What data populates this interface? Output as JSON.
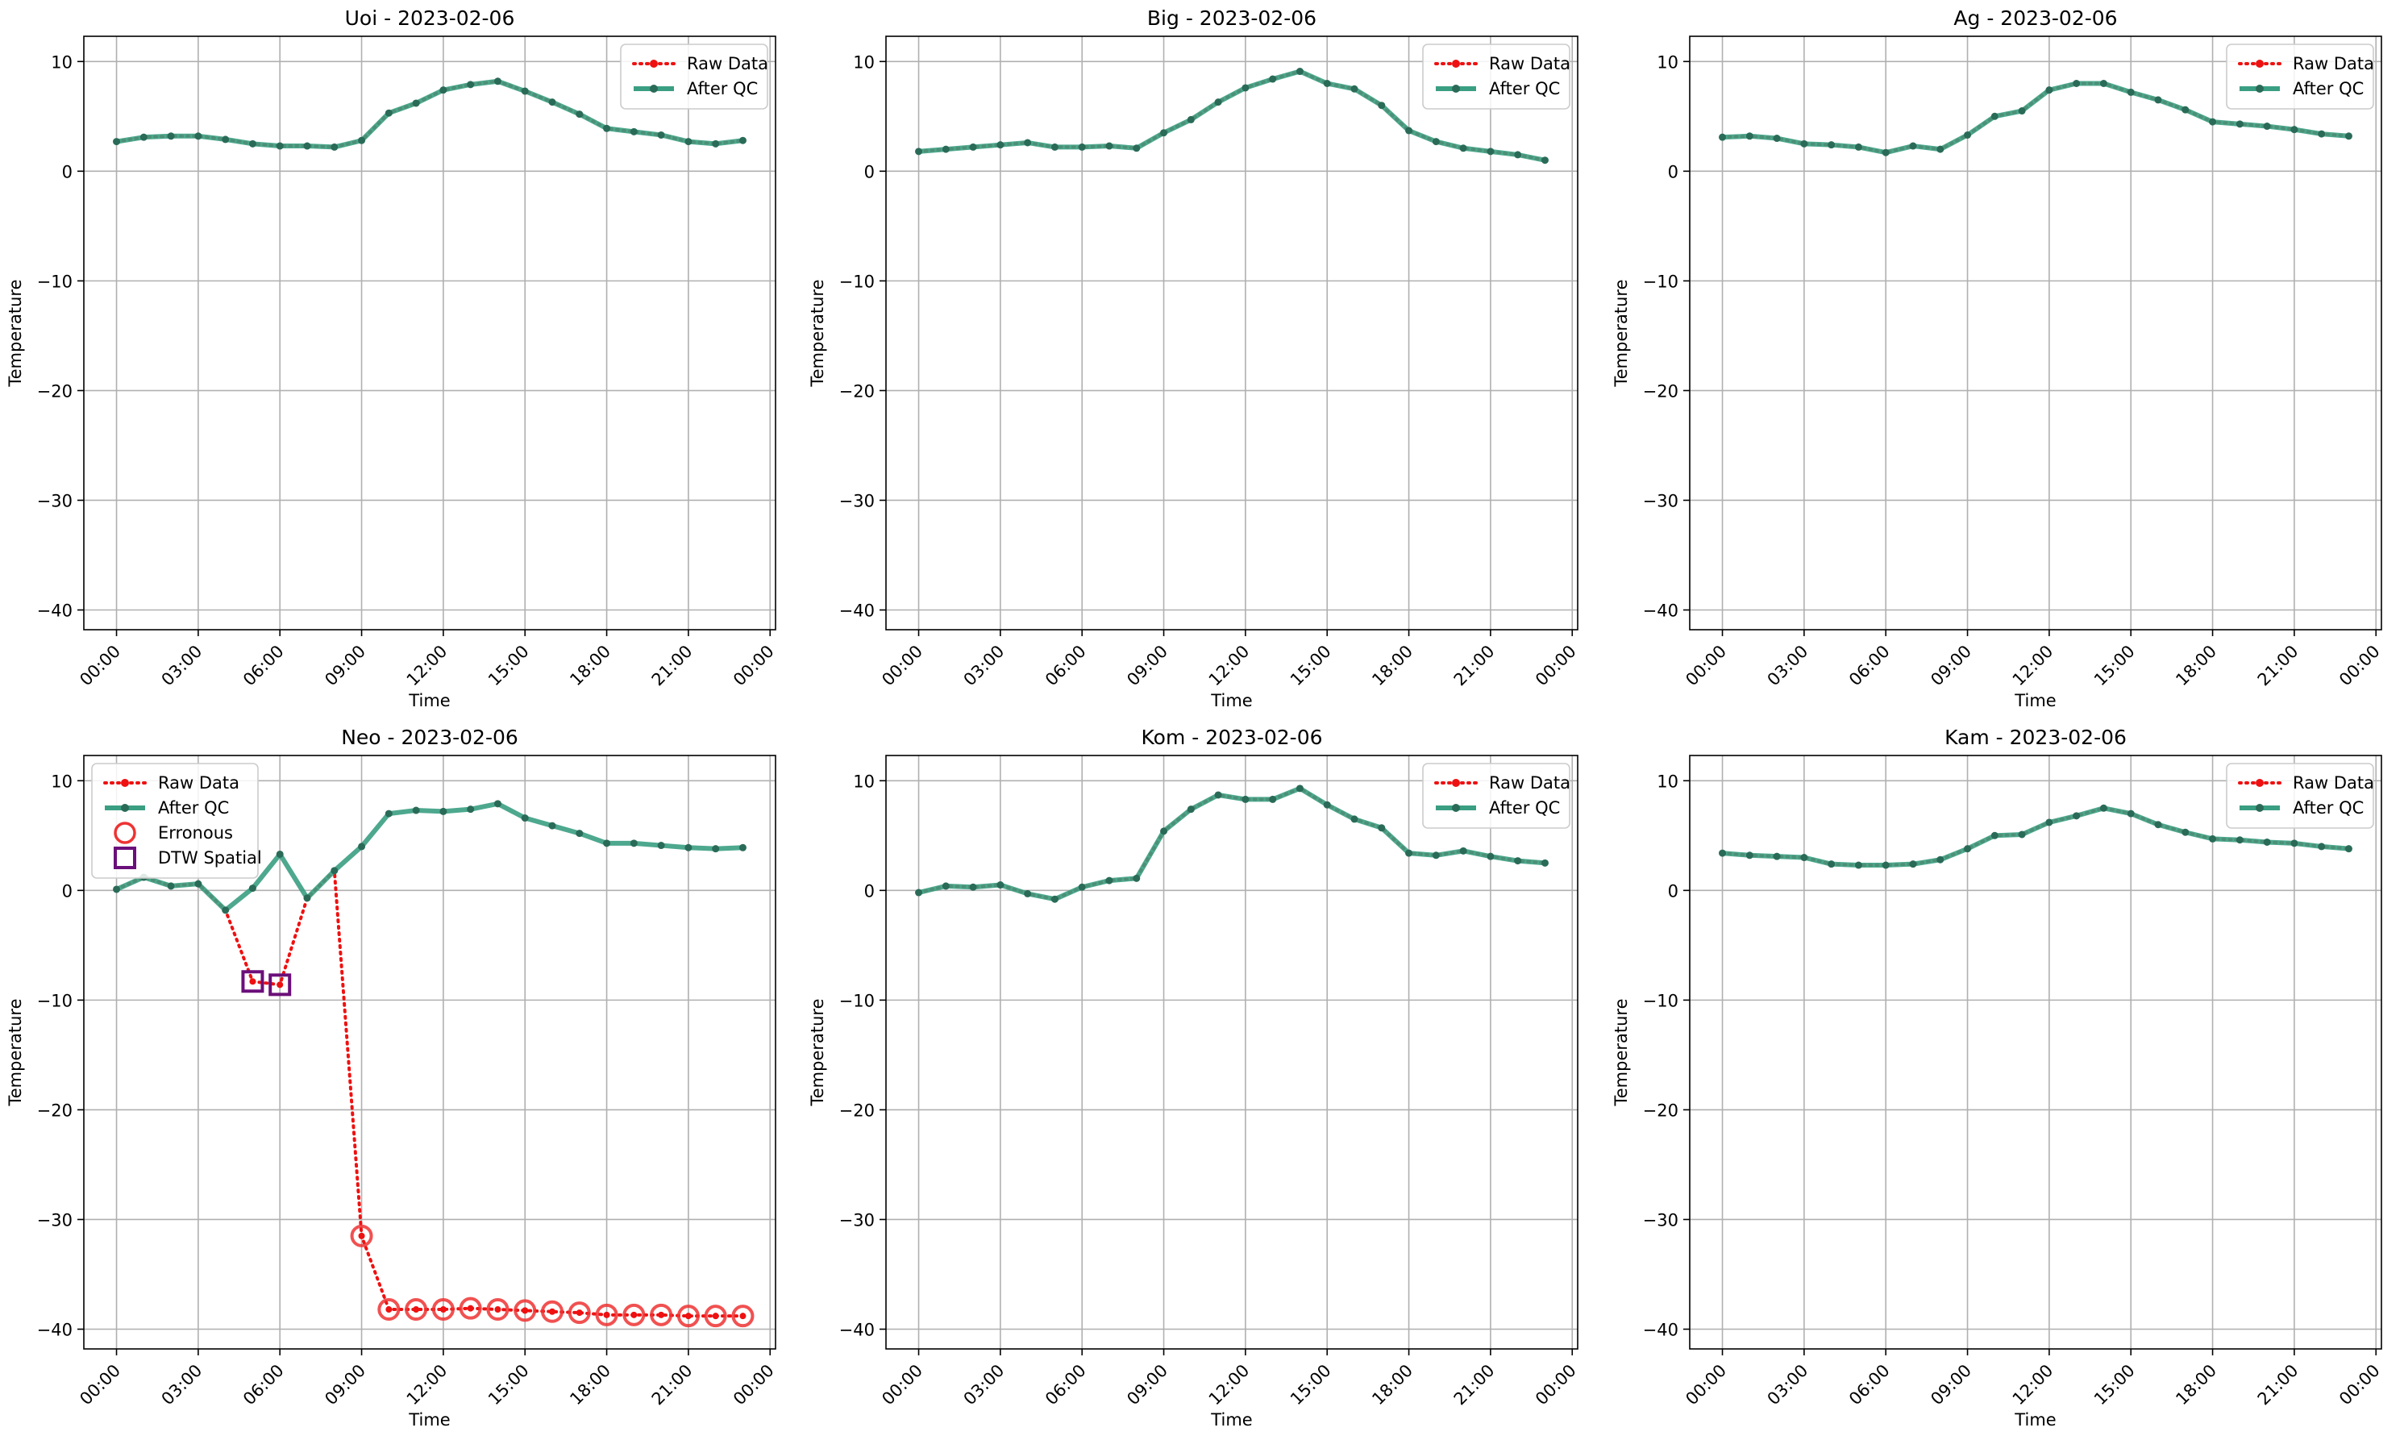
{
  "colors": {
    "raw": "#ee1111",
    "qc": "#3a9e82",
    "qc_marker": "#2a6b58",
    "erroneous": "#ee3333",
    "dtw": "#6b0f7a",
    "grid": "#b0b0b0"
  },
  "legend_labels": {
    "raw": "Raw Data",
    "qc": "After QC",
    "erroneous": "Erronous",
    "dtw": "DTW Spatial"
  },
  "chart_data": [
    {
      "type": "line",
      "title": "Uoi - 2023-02-06",
      "xlabel": "Time",
      "ylabel": "Temperature",
      "x_ticks": [
        "00:00",
        "03:00",
        "06:00",
        "09:00",
        "12:00",
        "15:00",
        "18:00",
        "21:00",
        "00:00"
      ],
      "x_range_hours": [
        -1.2,
        24.2
      ],
      "ylim": [
        -41.8,
        12.3
      ],
      "y_ticks": [
        10,
        0,
        -10,
        -20,
        -30,
        -40
      ],
      "grid": true,
      "legend_position": "upper right",
      "series": [
        {
          "name": "Raw Data",
          "values": [
            2.7,
            3.1,
            3.2,
            3.2,
            2.9,
            2.5,
            2.3,
            2.3,
            2.2,
            2.8,
            5.3,
            6.2,
            7.4,
            7.9,
            8.2,
            7.3,
            6.3,
            5.2,
            3.9,
            3.6,
            3.3,
            2.7,
            2.5,
            2.8
          ]
        },
        {
          "name": "After QC",
          "values": [
            2.7,
            3.1,
            3.2,
            3.2,
            2.9,
            2.5,
            2.3,
            2.3,
            2.2,
            2.8,
            5.3,
            6.2,
            7.4,
            7.9,
            8.2,
            7.3,
            6.3,
            5.2,
            3.9,
            3.6,
            3.3,
            2.7,
            2.5,
            2.8
          ]
        }
      ]
    },
    {
      "type": "line",
      "title": "Big - 2023-02-06",
      "xlabel": "Time",
      "ylabel": "Temperature",
      "x_ticks": [
        "00:00",
        "03:00",
        "06:00",
        "09:00",
        "12:00",
        "15:00",
        "18:00",
        "21:00",
        "00:00"
      ],
      "x_range_hours": [
        -1.2,
        24.2
      ],
      "ylim": [
        -41.8,
        12.3
      ],
      "y_ticks": [
        10,
        0,
        -10,
        -20,
        -30,
        -40
      ],
      "grid": true,
      "legend_position": "upper right",
      "series": [
        {
          "name": "Raw Data",
          "values": [
            1.8,
            2.0,
            2.2,
            2.4,
            2.6,
            2.2,
            2.2,
            2.3,
            2.1,
            3.5,
            4.7,
            6.3,
            7.6,
            8.4,
            9.1,
            8.0,
            7.5,
            6.0,
            3.7,
            2.7,
            2.1,
            1.8,
            1.5,
            1.0
          ]
        },
        {
          "name": "After QC",
          "values": [
            1.8,
            2.0,
            2.2,
            2.4,
            2.6,
            2.2,
            2.2,
            2.3,
            2.1,
            3.5,
            4.7,
            6.3,
            7.6,
            8.4,
            9.1,
            8.0,
            7.5,
            6.0,
            3.7,
            2.7,
            2.1,
            1.8,
            1.5,
            1.0
          ]
        }
      ]
    },
    {
      "type": "line",
      "title": "Ag - 2023-02-06",
      "xlabel": "Time",
      "ylabel": "Temperature",
      "x_ticks": [
        "00:00",
        "03:00",
        "06:00",
        "09:00",
        "12:00",
        "15:00",
        "18:00",
        "21:00",
        "00:00"
      ],
      "x_range_hours": [
        -1.2,
        24.2
      ],
      "ylim": [
        -41.8,
        12.3
      ],
      "y_ticks": [
        10,
        0,
        -10,
        -20,
        -30,
        -40
      ],
      "grid": true,
      "legend_position": "upper right",
      "series": [
        {
          "name": "Raw Data",
          "values": [
            3.1,
            3.2,
            3.0,
            2.5,
            2.4,
            2.2,
            1.7,
            2.3,
            2.0,
            3.3,
            5.0,
            5.5,
            7.4,
            8.0,
            8.0,
            7.2,
            6.5,
            5.6,
            4.5,
            4.3,
            4.1,
            3.8,
            3.4,
            3.2
          ]
        },
        {
          "name": "After QC",
          "values": [
            3.1,
            3.2,
            3.0,
            2.5,
            2.4,
            2.2,
            1.7,
            2.3,
            2.0,
            3.3,
            5.0,
            5.5,
            7.4,
            8.0,
            8.0,
            7.2,
            6.5,
            5.6,
            4.5,
            4.3,
            4.1,
            3.8,
            3.4,
            3.2
          ]
        }
      ]
    },
    {
      "type": "line",
      "title": "Neo - 2023-02-06",
      "xlabel": "Time",
      "ylabel": "Temperature",
      "x_ticks": [
        "00:00",
        "03:00",
        "06:00",
        "09:00",
        "12:00",
        "15:00",
        "18:00",
        "21:00",
        "00:00"
      ],
      "x_range_hours": [
        -1.2,
        24.2
      ],
      "ylim": [
        -41.8,
        12.3
      ],
      "y_ticks": [
        10,
        0,
        -10,
        -20,
        -30,
        -40
      ],
      "grid": true,
      "legend_position": "upper left",
      "series": [
        {
          "name": "Raw Data",
          "values": [
            0.1,
            1.2,
            0.4,
            0.6,
            -1.8,
            -8.3,
            -8.6,
            -0.7,
            1.8,
            -31.5,
            -38.2,
            -38.2,
            -38.2,
            -38.1,
            -38.2,
            -38.3,
            -38.4,
            -38.5,
            -38.7,
            -38.7,
            -38.7,
            -38.8,
            -38.8,
            -38.8
          ]
        },
        {
          "name": "After QC",
          "values": [
            0.1,
            1.2,
            0.4,
            0.6,
            -1.8,
            0.2,
            3.3,
            -0.7,
            1.8,
            4.0,
            7.0,
            7.3,
            7.2,
            7.4,
            7.9,
            6.6,
            5.9,
            5.2,
            4.3,
            4.3,
            4.1,
            3.9,
            3.8,
            3.9
          ]
        }
      ],
      "erroneous_points": [
        {
          "hour": 9,
          "value": -31.5
        },
        {
          "hour": 10,
          "value": -38.2
        },
        {
          "hour": 11,
          "value": -38.2
        },
        {
          "hour": 12,
          "value": -38.2
        },
        {
          "hour": 13,
          "value": -38.1
        },
        {
          "hour": 14,
          "value": -38.2
        },
        {
          "hour": 15,
          "value": -38.3
        },
        {
          "hour": 16,
          "value": -38.4
        },
        {
          "hour": 17,
          "value": -38.5
        },
        {
          "hour": 18,
          "value": -38.7
        },
        {
          "hour": 19,
          "value": -38.7
        },
        {
          "hour": 20,
          "value": -38.7
        },
        {
          "hour": 21,
          "value": -38.8
        },
        {
          "hour": 22,
          "value": -38.8
        },
        {
          "hour": 23,
          "value": -38.8
        }
      ],
      "dtw_spatial_points": [
        {
          "hour": 5,
          "value": -8.3
        },
        {
          "hour": 6,
          "value": -8.6
        }
      ]
    },
    {
      "type": "line",
      "title": "Kom - 2023-02-06",
      "xlabel": "Time",
      "ylabel": "Temperature",
      "x_ticks": [
        "00:00",
        "03:00",
        "06:00",
        "09:00",
        "12:00",
        "15:00",
        "18:00",
        "21:00",
        "00:00"
      ],
      "x_range_hours": [
        -1.2,
        24.2
      ],
      "ylim": [
        -41.8,
        12.3
      ],
      "y_ticks": [
        10,
        0,
        -10,
        -20,
        -30,
        -40
      ],
      "grid": true,
      "legend_position": "upper right",
      "series": [
        {
          "name": "Raw Data",
          "values": [
            -0.2,
            0.4,
            0.3,
            0.5,
            -0.3,
            -0.8,
            0.3,
            0.9,
            1.1,
            5.4,
            7.4,
            8.7,
            8.3,
            8.3,
            9.3,
            7.8,
            6.5,
            5.7,
            3.4,
            3.2,
            3.6,
            3.1,
            2.7,
            2.5
          ]
        },
        {
          "name": "After QC",
          "values": [
            -0.2,
            0.4,
            0.3,
            0.5,
            -0.3,
            -0.8,
            0.3,
            0.9,
            1.1,
            5.4,
            7.4,
            8.7,
            8.3,
            8.3,
            9.3,
            7.8,
            6.5,
            5.7,
            3.4,
            3.2,
            3.6,
            3.1,
            2.7,
            2.5
          ]
        }
      ]
    },
    {
      "type": "line",
      "title": "Kam - 2023-02-06",
      "xlabel": "Time",
      "ylabel": "Temperature",
      "x_ticks": [
        "00:00",
        "03:00",
        "06:00",
        "09:00",
        "12:00",
        "15:00",
        "18:00",
        "21:00",
        "00:00"
      ],
      "x_range_hours": [
        -1.2,
        24.2
      ],
      "ylim": [
        -41.8,
        12.3
      ],
      "y_ticks": [
        10,
        0,
        -10,
        -20,
        -30,
        -40
      ],
      "grid": true,
      "legend_position": "upper right",
      "series": [
        {
          "name": "Raw Data",
          "values": [
            3.4,
            3.2,
            3.1,
            3.0,
            2.4,
            2.3,
            2.3,
            2.4,
            2.8,
            3.8,
            5.0,
            5.1,
            6.2,
            6.8,
            7.5,
            7.0,
            6.0,
            5.3,
            4.7,
            4.6,
            4.4,
            4.3,
            4.0,
            3.8
          ]
        },
        {
          "name": "After QC",
          "values": [
            3.4,
            3.2,
            3.1,
            3.0,
            2.4,
            2.3,
            2.3,
            2.4,
            2.8,
            3.8,
            5.0,
            5.1,
            6.2,
            6.8,
            7.5,
            7.0,
            6.0,
            5.3,
            4.7,
            4.6,
            4.4,
            4.3,
            4.0,
            3.8
          ]
        }
      ]
    }
  ]
}
